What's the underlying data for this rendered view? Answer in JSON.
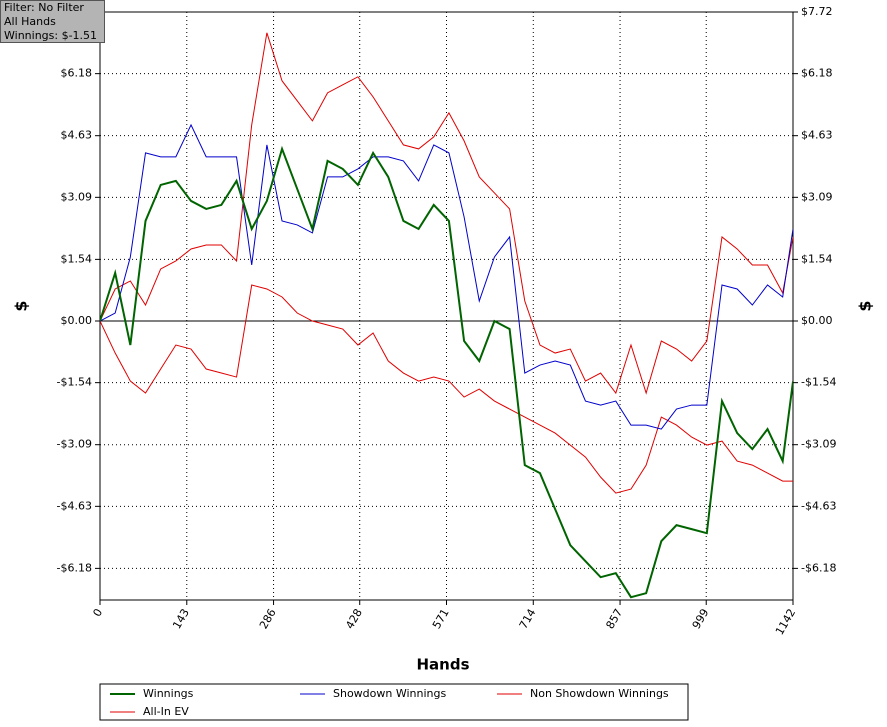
{
  "chart_data": {
    "type": "line",
    "info": [
      "Filter: No Filter",
      "All Hands",
      "Winnings: $-1.51"
    ],
    "x_label": "Hands",
    "y_label": "$",
    "x": [
      0,
      25,
      50,
      75,
      100,
      125,
      150,
      175,
      200,
      225,
      250,
      275,
      300,
      325,
      350,
      375,
      400,
      425,
      450,
      475,
      500,
      525,
      550,
      575,
      600,
      625,
      650,
      675,
      700,
      725,
      750,
      775,
      800,
      825,
      850,
      875,
      900,
      925,
      950,
      975,
      1000,
      1025,
      1050,
      1075,
      1100,
      1125,
      1142
    ],
    "series": [
      {
        "name": "Winnings",
        "color": "#006400",
        "width": 2,
        "values": [
          0,
          1.2,
          -0.6,
          2.5,
          3.4,
          3.5,
          3.0,
          2.8,
          2.9,
          3.5,
          2.3,
          3.0,
          4.3,
          3.3,
          2.3,
          4.0,
          3.8,
          3.4,
          4.2,
          3.6,
          2.5,
          2.3,
          2.9,
          2.5,
          -0.5,
          -1.0,
          0.0,
          -0.2,
          -3.6,
          -3.8,
          -4.7,
          -5.6,
          -6.0,
          -6.4,
          -6.3,
          -6.9,
          -6.8,
          -5.5,
          -5.1,
          -5.2,
          -5.3,
          -2.0,
          -2.8,
          -3.2,
          -2.7,
          -3.5,
          -1.51
        ]
      },
      {
        "name": "Showdown Winnings",
        "color": "#0000cc",
        "width": 1,
        "values": [
          0,
          0.2,
          1.6,
          4.2,
          4.1,
          4.1,
          4.9,
          4.1,
          4.1,
          4.1,
          1.4,
          4.4,
          2.5,
          2.4,
          2.2,
          3.6,
          3.6,
          3.8,
          4.1,
          4.1,
          4.0,
          3.5,
          4.4,
          4.2,
          2.6,
          0.5,
          1.6,
          2.1,
          -1.3,
          -1.1,
          -1.0,
          -1.1,
          -2.0,
          -2.1,
          -2.0,
          -2.6,
          -2.6,
          -2.7,
          -2.2,
          -2.1,
          -2.1,
          0.9,
          0.8,
          0.4,
          0.9,
          0.6,
          2.3
        ]
      },
      {
        "name": "Non Showdown Winnings",
        "color": "#e00000",
        "width": 1,
        "values": [
          0,
          -0.8,
          -1.5,
          -1.8,
          -1.2,
          -0.6,
          -0.7,
          -1.2,
          -1.3,
          -1.4,
          0.9,
          0.8,
          0.6,
          0.2,
          0.0,
          -0.1,
          -0.2,
          -0.6,
          -0.3,
          -1.0,
          -1.3,
          -1.5,
          -1.4,
          -1.5,
          -1.9,
          -1.7,
          -2.0,
          -2.2,
          -2.4,
          -2.6,
          -2.8,
          -3.1,
          -3.4,
          -3.9,
          -4.3,
          -4.2,
          -3.6,
          -2.4,
          -2.6,
          -2.9,
          -3.1,
          -3.0,
          -3.5,
          -3.6,
          -3.8,
          -4.0,
          -4.0
        ]
      },
      {
        "name": "All-In EV",
        "color": "#e00000",
        "width": 1,
        "values": [
          0,
          0.8,
          1.0,
          0.4,
          1.3,
          1.5,
          1.8,
          1.9,
          1.9,
          1.5,
          4.9,
          7.2,
          6.0,
          5.5,
          5.0,
          5.7,
          5.9,
          6.1,
          5.6,
          5.0,
          4.4,
          4.3,
          4.6,
          5.2,
          4.5,
          3.6,
          3.2,
          2.8,
          0.5,
          -0.6,
          -0.8,
          -0.7,
          -1.5,
          -1.3,
          -1.8,
          -0.6,
          -1.8,
          -0.5,
          -0.7,
          -1.0,
          -0.5,
          2.1,
          1.8,
          1.4,
          1.4,
          0.7,
          2.1
        ]
      }
    ],
    "xlim": [
      0,
      1142
    ],
    "xticks": [
      0,
      143,
      286,
      428,
      571,
      714,
      857,
      999,
      1142
    ],
    "ylim": [
      -6.97,
      7.72
    ],
    "yticks": [
      {
        "value": -6.18,
        "label": "-$6.18"
      },
      {
        "value": -4.63,
        "label": "-$4.63"
      },
      {
        "value": -3.09,
        "label": "-$3.09"
      },
      {
        "value": -1.54,
        "label": "-$1.54"
      },
      {
        "value": 0,
        "label": "$0.00"
      },
      {
        "value": 1.54,
        "label": "$1.54"
      },
      {
        "value": 3.09,
        "label": "$3.09"
      },
      {
        "value": 4.63,
        "label": "$4.63"
      },
      {
        "value": 6.18,
        "label": "$6.18"
      },
      {
        "value": 7.72,
        "label": "$7.72"
      }
    ],
    "grid": true
  }
}
